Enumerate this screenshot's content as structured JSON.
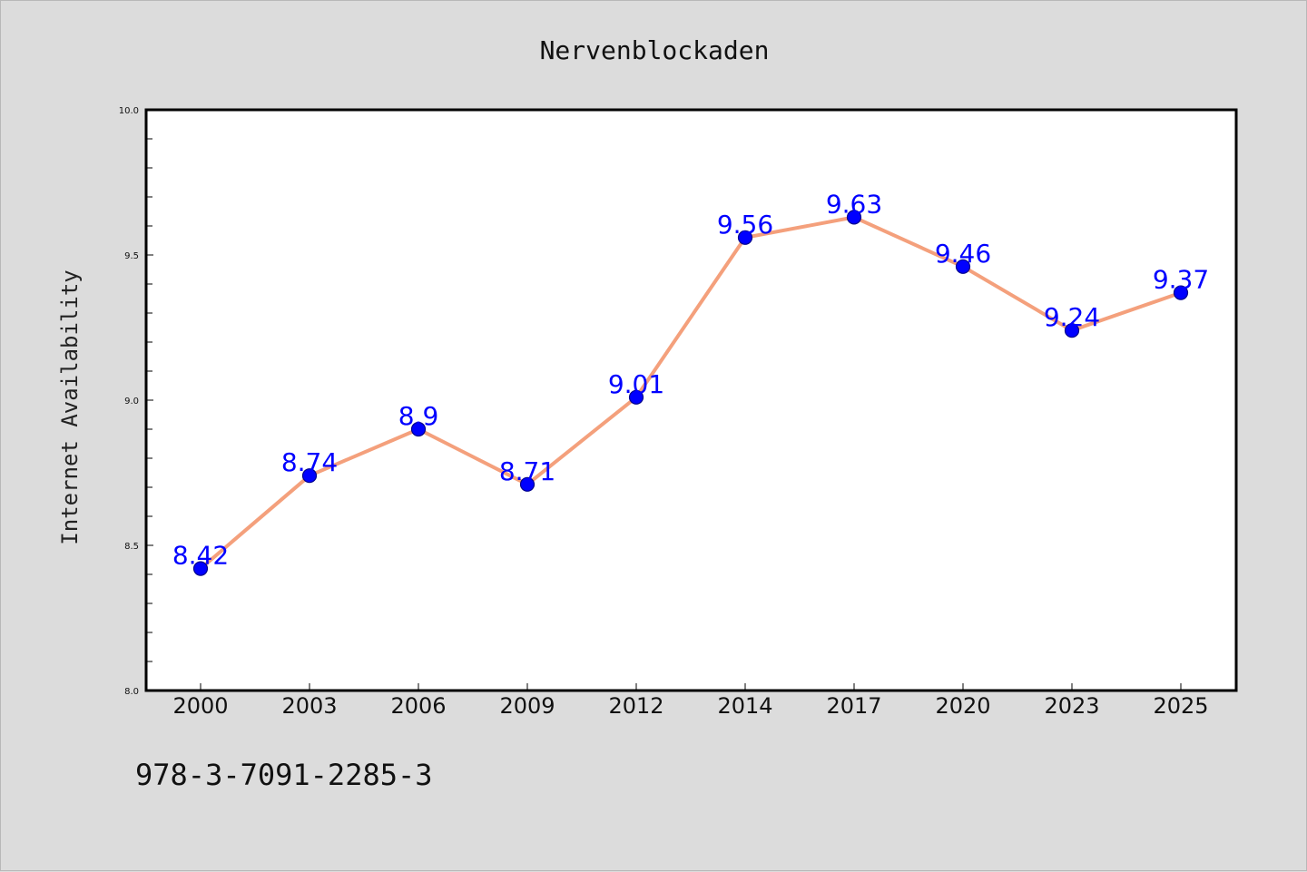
{
  "chart_data": {
    "type": "line",
    "title": "Nervenblockaden",
    "xlabel": "",
    "ylabel": "Internet Availability",
    "categories": [
      "2000",
      "2003",
      "2006",
      "2009",
      "2012",
      "2014",
      "2017",
      "2020",
      "2023",
      "2025"
    ],
    "series": [
      {
        "values": [
          8.42,
          8.74,
          8.9,
          8.71,
          9.01,
          9.56,
          9.63,
          9.46,
          9.24,
          9.37
        ]
      }
    ],
    "data_labels": [
      "8.42",
      "8.74",
      "8.9",
      "8.71",
      "9.01",
      "9.56",
      "9.63",
      "9.46",
      "9.24",
      "9.37"
    ],
    "ylim": [
      8.0,
      10.0
    ],
    "yticks": [
      "8.0",
      "8.5",
      "9.0",
      "9.5",
      "10.0"
    ],
    "grid": false,
    "legend": "none",
    "colors": {
      "line": "#f4a07c",
      "marker": "#0000ff",
      "marker_edge": "#00008b",
      "data_label": "#0000ff",
      "background": "#dcdcdc",
      "plot_background": "#ffffff"
    }
  },
  "footnote": "978-3-7091-2285-3"
}
